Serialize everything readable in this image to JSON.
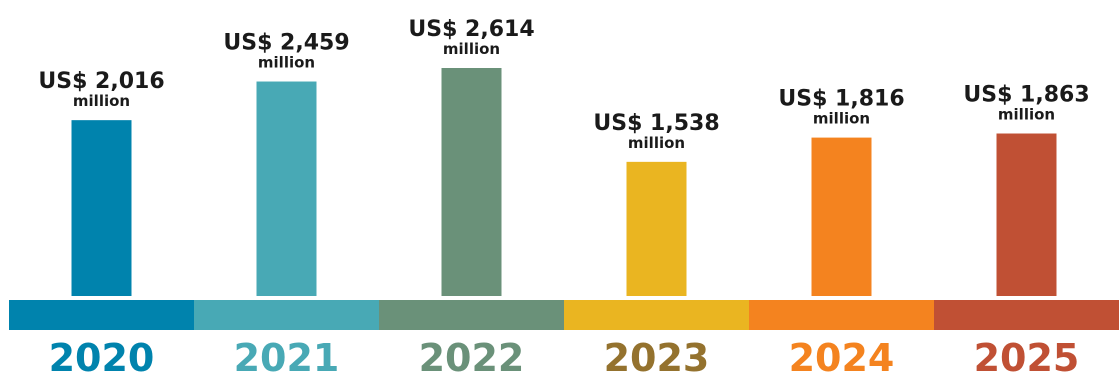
{
  "chart_data": {
    "type": "bar",
    "categories": [
      "2020",
      "2021",
      "2022",
      "2023",
      "2024",
      "2025"
    ],
    "values": [
      2016,
      2459,
      2614,
      1538,
      1816,
      1863
    ],
    "value_labels": [
      "US$ 2,016",
      "US$ 2,459",
      "US$ 2,614",
      "US$ 1,538",
      "US$ 1,816",
      "US$ 1,863"
    ],
    "unit_label": "million",
    "bar_colors": [
      "#0083ad",
      "#48a9b5",
      "#6a9179",
      "#eab521",
      "#f4831f",
      "#c05034"
    ],
    "year_label_colors": [
      "#0083ad",
      "#48a9b5",
      "#6a9179",
      "#94722e",
      "#f4831f",
      "#c05034"
    ],
    "grid": false,
    "legend": "none"
  }
}
